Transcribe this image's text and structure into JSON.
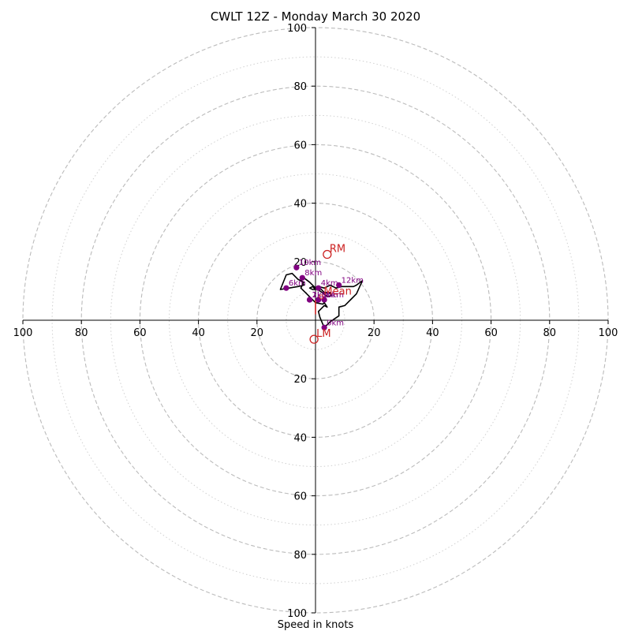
{
  "chart_data": {
    "type": "hodograph",
    "title": "CWLT 12Z - Monday March 30 2020",
    "xlabel": "Speed in knots",
    "ring_max": 100,
    "major_rings": [
      20,
      40,
      60,
      80,
      100
    ],
    "minor_rings": [
      10,
      30,
      50,
      70,
      90
    ],
    "tick_labels": {
      "x_left": [
        "100",
        "80",
        "60",
        "40",
        "20"
      ],
      "x_right": [
        "20",
        "40",
        "60",
        "80",
        "100"
      ],
      "y_top": [
        "100",
        "80",
        "60",
        "40",
        "20"
      ],
      "y_bottom": [
        "20",
        "40",
        "60",
        "80",
        "100"
      ]
    },
    "tick_values": {
      "x_left": [
        100,
        80,
        60,
        40,
        20
      ],
      "x_right": [
        20,
        40,
        60,
        80,
        100
      ],
      "y_top": [
        100,
        80,
        60,
        40,
        20
      ],
      "y_bottom": [
        20,
        40,
        60,
        80,
        100
      ]
    },
    "colors": {
      "trace": "#000000",
      "height_marker": "#800080",
      "storm_motion": "#cc2222",
      "ring": "#bbbbbb",
      "axis": "#000000"
    },
    "trace": [
      [
        3,
        -2.5
      ],
      [
        1.5,
        1
      ],
      [
        1,
        3
      ],
      [
        2,
        4
      ],
      [
        3,
        5
      ],
      [
        4,
        4.5
      ],
      [
        3,
        6
      ],
      [
        2.5,
        5.5
      ],
      [
        0,
        6
      ],
      [
        -1,
        7
      ],
      [
        -2,
        8
      ],
      [
        -3,
        9
      ],
      [
        -4,
        10
      ],
      [
        -5,
        11
      ],
      [
        -4,
        13
      ],
      [
        -6,
        14
      ],
      [
        -8,
        16
      ],
      [
        -10,
        15.5
      ],
      [
        -12,
        10.5
      ],
      [
        -9,
        11
      ],
      [
        -6,
        11.5
      ],
      [
        -4,
        12
      ],
      [
        -5,
        14
      ],
      [
        -4,
        14.5
      ],
      [
        -2,
        13
      ],
      [
        0,
        11
      ],
      [
        1.5,
        10
      ],
      [
        3,
        9
      ],
      [
        4,
        8
      ],
      [
        5.5,
        8.5
      ],
      [
        5,
        9.5
      ],
      [
        3,
        9.5
      ],
      [
        2,
        10.5
      ],
      [
        1,
        11
      ],
      [
        0,
        10.5
      ],
      [
        -1,
        10.5
      ],
      [
        -2,
        11
      ],
      [
        -1,
        11.5
      ],
      [
        0,
        10.5
      ],
      [
        1,
        11.5
      ],
      [
        3,
        11
      ],
      [
        5,
        12
      ],
      [
        7,
        11
      ],
      [
        9,
        11.5
      ],
      [
        11,
        11.5
      ],
      [
        13,
        11.5
      ],
      [
        14,
        12
      ],
      [
        16,
        13.5
      ],
      [
        14,
        9
      ],
      [
        12,
        7
      ],
      [
        10,
        5
      ],
      [
        8,
        4.5
      ],
      [
        8,
        1.5
      ],
      [
        5,
        -0.5
      ],
      [
        3,
        -2.5
      ]
    ],
    "height_markers": [
      {
        "label": "0km",
        "u": 3,
        "v": -2.5
      },
      {
        "label": "1km",
        "u": -2,
        "v": 7
      },
      {
        "label": "2km",
        "u": -2,
        "v": 7
      },
      {
        "label": "3km",
        "u": 1,
        "v": 7
      },
      {
        "label": "4km",
        "u": 1,
        "v": 11
      },
      {
        "label": "5km",
        "u": 3,
        "v": 7
      },
      {
        "label": "6km",
        "u": -10,
        "v": 11
      },
      {
        "label": "8km",
        "u": -4.5,
        "v": 14.5
      },
      {
        "label": "10km",
        "u": -6.5,
        "v": 18
      },
      {
        "label": "12km",
        "u": 8,
        "v": 12
      }
    ],
    "storm_motion": [
      {
        "label": "RM",
        "u": 4,
        "v": 22.5
      },
      {
        "label": "LM",
        "u": -0.5,
        "v": -6.5
      },
      {
        "label": "Mean",
        "u": 2,
        "v": 8
      }
    ],
    "shear_vector": [
      [
        0,
        2
      ],
      [
        0,
        7
      ]
    ]
  }
}
